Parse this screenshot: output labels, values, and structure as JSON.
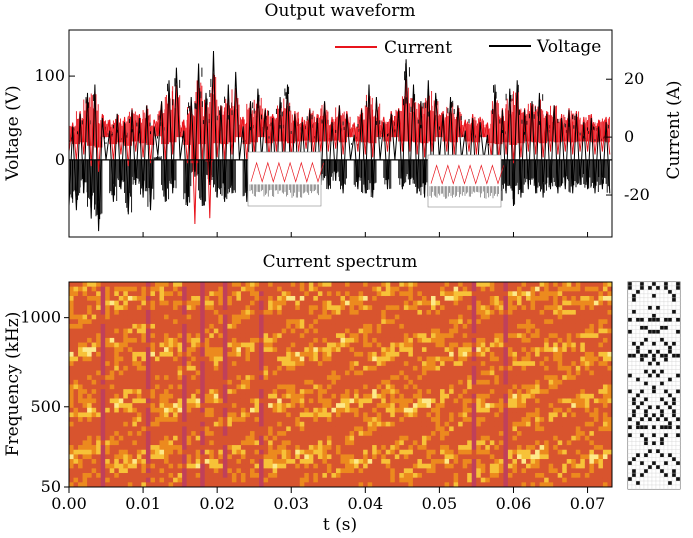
{
  "chart_data": [
    {
      "type": "line",
      "title": "Output waveform",
      "xlabel": "",
      "ylabel": "Voltage (V)",
      "ylabel_right": "Current (A)",
      "xlim": [
        0.0,
        0.0733
      ],
      "ylim": [
        -92,
        155
      ],
      "ylim_right": [
        -34.5,
        37
      ],
      "yticks": [
        0,
        100
      ],
      "yticks_right": [
        -20,
        0,
        20
      ],
      "legend": {
        "placement": "top-right",
        "entries": [
          "Current",
          "Voltage"
        ]
      },
      "colors": {
        "Current": "#e8141c",
        "Voltage": "#000000"
      },
      "series": [
        {
          "name": "Voltage",
          "axis": "left",
          "x": [
            0.0,
            0.0005,
            0.001,
            0.0015,
            0.002,
            0.0025,
            0.003,
            0.0035,
            0.004,
            0.0045,
            0.005,
            0.0055,
            0.006,
            0.0065,
            0.007,
            0.0075,
            0.008,
            0.0085,
            0.009,
            0.0095,
            0.01,
            0.0105,
            0.011,
            0.0115,
            0.012,
            0.0125,
            0.013,
            0.0135,
            0.014,
            0.0145,
            0.015,
            0.0155,
            0.016,
            0.0165,
            0.017,
            0.0175,
            0.018,
            0.0185,
            0.019,
            0.0195,
            0.02,
            0.0205,
            0.021,
            0.0215,
            0.022,
            0.0225,
            0.023,
            0.0235,
            0.024,
            0.0245,
            0.025,
            0.0255,
            0.026,
            0.0265,
            0.027,
            0.0275,
            0.028,
            0.0285,
            0.029,
            0.0295,
            0.03,
            0.0305,
            0.031,
            0.0315,
            0.032,
            0.0325,
            0.033,
            0.0335,
            0.034,
            0.0345,
            0.035,
            0.0355,
            0.036,
            0.0365,
            0.037,
            0.0375,
            0.038,
            0.0385,
            0.039,
            0.0395,
            0.04,
            0.0405,
            0.041,
            0.0415,
            0.042,
            0.0425,
            0.043,
            0.0435,
            0.044,
            0.0445,
            0.045,
            0.0455,
            0.046,
            0.0465,
            0.047,
            0.0475,
            0.048,
            0.0485,
            0.049,
            0.0495,
            0.05,
            0.0505,
            0.051,
            0.0515,
            0.052,
            0.0525,
            0.053,
            0.0535,
            0.054,
            0.0545,
            0.055,
            0.0555,
            0.056,
            0.0565,
            0.057,
            0.0575,
            0.058,
            0.0585,
            0.059,
            0.0595,
            0.06,
            0.0605,
            0.061,
            0.0615,
            0.062,
            0.0625,
            0.063,
            0.0635,
            0.064,
            0.0645,
            0.065,
            0.0655,
            0.066,
            0.0665,
            0.067,
            0.0675,
            0.068,
            0.0685,
            0.069,
            0.0695,
            0.07,
            0.0705,
            0.071,
            0.0715,
            0.072,
            0.0725,
            0.073
          ],
          "y": [
            -55,
            40,
            -60,
            55,
            -40,
            80,
            -70,
            90,
            -85,
            50,
            0,
            35,
            -50,
            55,
            -35,
            45,
            -65,
            60,
            -30,
            50,
            -45,
            65,
            -60,
            40,
            5,
            70,
            -50,
            95,
            -40,
            110,
            0,
            35,
            -55,
            75,
            -20,
            115,
            -55,
            80,
            -30,
            130,
            -45,
            65,
            -50,
            90,
            -40,
            105,
            0,
            40,
            -50,
            70,
            -40,
            85,
            0,
            60,
            -45,
            50,
            -35,
            75,
            -30,
            90,
            -45,
            55,
            -35,
            45,
            -25,
            60,
            -40,
            50,
            -30,
            70,
            -35,
            45,
            -25,
            65,
            -40,
            55,
            0,
            30,
            -35,
            60,
            -40,
            90,
            -45,
            75,
            0,
            45,
            -35,
            55,
            0,
            60,
            -35,
            120,
            -30,
            90,
            -40,
            70,
            -45,
            95,
            -30,
            80,
            0,
            55,
            -35,
            75,
            -40,
            65,
            0,
            35,
            -30,
            50,
            -40,
            45,
            0,
            30,
            -45,
            90,
            -50,
            60,
            -40,
            85,
            -55,
            95,
            -45,
            60,
            -35,
            70,
            -40,
            80,
            -45,
            55,
            -35,
            65,
            -40,
            50,
            -35,
            60,
            -40,
            55,
            -30,
            45,
            -35,
            50,
            -40,
            40,
            -35,
            45,
            -40
          ]
        },
        {
          "name": "Current",
          "axis": "right",
          "x": [
            0.0,
            0.0005,
            0.001,
            0.0015,
            0.002,
            0.0025,
            0.003,
            0.0035,
            0.004,
            0.0045,
            0.005,
            0.0055,
            0.006,
            0.0065,
            0.007,
            0.0075,
            0.008,
            0.0085,
            0.009,
            0.0095,
            0.01,
            0.0105,
            0.011,
            0.0115,
            0.012,
            0.0125,
            0.013,
            0.0135,
            0.014,
            0.0145,
            0.015,
            0.0155,
            0.016,
            0.0165,
            0.017,
            0.0175,
            0.018,
            0.0185,
            0.019,
            0.0195,
            0.02,
            0.0205,
            0.021,
            0.0215,
            0.022,
            0.0225,
            0.023,
            0.0235,
            0.024,
            0.0245,
            0.025,
            0.0255,
            0.026,
            0.0265,
            0.027,
            0.0275,
            0.028,
            0.0285,
            0.029,
            0.0295,
            0.03,
            0.0305,
            0.031,
            0.0315,
            0.032,
            0.0325,
            0.033,
            0.0335,
            0.034,
            0.0345,
            0.035,
            0.0355,
            0.036,
            0.0365,
            0.037,
            0.0375,
            0.038,
            0.0385,
            0.039,
            0.0395,
            0.04,
            0.0405,
            0.041,
            0.0415,
            0.042,
            0.0425,
            0.043,
            0.0435,
            0.044,
            0.0445,
            0.045,
            0.0455,
            0.046,
            0.0465,
            0.047,
            0.0475,
            0.048,
            0.0485,
            0.049,
            0.0495,
            0.05,
            0.0505,
            0.051,
            0.0515,
            0.052,
            0.0525,
            0.053,
            0.0535,
            0.054,
            0.0545,
            0.055,
            0.0555,
            0.056,
            0.0565,
            0.057,
            0.0575,
            0.058,
            0.0585,
            0.059,
            0.0595,
            0.06,
            0.0605,
            0.061,
            0.0615,
            0.062,
            0.0625,
            0.063,
            0.0635,
            0.064,
            0.0645,
            0.065,
            0.0655,
            0.066,
            0.0665,
            0.067,
            0.0675,
            0.068,
            0.0685,
            0.069,
            0.0695,
            0.07,
            0.0705,
            0.071,
            0.0715,
            0.072,
            0.0725,
            0.073
          ],
          "y": [
            -5,
            5,
            -8,
            9,
            -6,
            14,
            -10,
            16,
            -12,
            8,
            0,
            6,
            -8,
            8,
            -6,
            7,
            -10,
            10,
            -5,
            8,
            -7,
            11,
            -9,
            6,
            1,
            12,
            -8,
            16,
            -6,
            18,
            0,
            6,
            -9,
            12,
            -30,
            20,
            -8,
            13,
            -28,
            22,
            -7,
            11,
            -8,
            15,
            -6,
            17,
            0,
            7,
            -8,
            12,
            -6,
            14,
            0,
            10,
            -7,
            8,
            -5,
            12,
            -5,
            15,
            -7,
            9,
            -5,
            7,
            -4,
            10,
            -6,
            8,
            -5,
            12,
            -5,
            7,
            -4,
            11,
            -6,
            9,
            0,
            5,
            -5,
            10,
            -6,
            15,
            -7,
            12,
            0,
            7,
            -5,
            9,
            0,
            10,
            -5,
            20,
            -5,
            15,
            -6,
            12,
            -7,
            16,
            -5,
            13,
            0,
            9,
            -5,
            12,
            -6,
            11,
            0,
            6,
            -5,
            8,
            -6,
            7,
            0,
            5,
            -7,
            15,
            -8,
            10,
            -6,
            14,
            -9,
            16,
            -7,
            10,
            -5,
            12,
            -6,
            13,
            -7,
            9,
            -5,
            11,
            -6,
            8,
            -5,
            10,
            -6,
            9,
            -5,
            7,
            -5,
            8,
            -6,
            6,
            -5,
            7,
            -6
          ]
        }
      ]
    },
    {
      "type": "heatmap",
      "title": "Current spectrum",
      "xlabel": "t (s)",
      "ylabel": "Frequency (kHz)",
      "xlim": [
        0.0,
        0.0733
      ],
      "ylim": [
        50,
        1200
      ],
      "xticks": [
        "0.00",
        "0.01",
        "0.02",
        "0.03",
        "0.04",
        "0.05",
        "0.06",
        "0.07"
      ],
      "yticks": [
        "50",
        "500",
        "1000"
      ],
      "colormap": [
        "#c0405a",
        "#d8542e",
        "#ec8a1e",
        "#f7c238",
        "#fde98a"
      ],
      "dark_columns_t": [
        0.0045,
        0.0105,
        0.0155,
        0.0175,
        0.0205,
        0.0255,
        0.0545,
        0.0585
      ]
    }
  ]
}
